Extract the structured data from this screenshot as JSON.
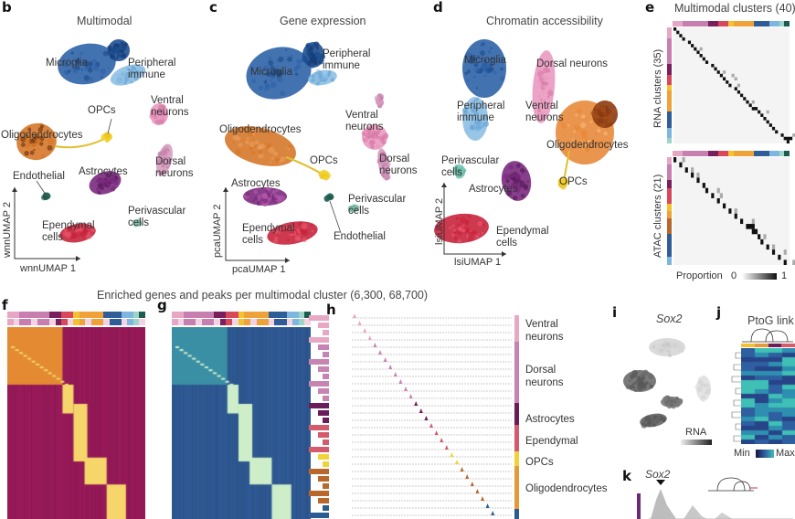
{
  "panels": {
    "b": {
      "letter": "b",
      "title": "Multimodal",
      "xlabel": "wnnUMAP 1",
      "ylabel": "wnnUMAP 2",
      "labels": [
        "Microglia",
        "Peripheral\nimmune",
        "OPCs",
        "Ventral\nneurons",
        "Oligodendrocytes",
        "Dorsal\nneurons",
        "Endothelial",
        "Astrocytes",
        "Perivascular\ncells",
        "Ependymal\ncells"
      ]
    },
    "c": {
      "letter": "c",
      "title": "Gene expression",
      "xlabel": "pcaUMAP 1",
      "ylabel": "pcaUMAP 2",
      "labels": [
        "Peripheral\nimmune",
        "Microglia",
        "Oligodendrocytes",
        "Ventral\nneurons",
        "OPCs",
        "Dorsal\nneurons",
        "Astrocytes",
        "Perivascular\ncells",
        "Ependymal\ncells",
        "Endothelial"
      ]
    },
    "d": {
      "letter": "d",
      "title": "Chromatin accessibility",
      "xlabel": "lsiUMAP 1",
      "ylabel": "lsiUMAP 2",
      "labels": [
        "Microglia",
        "Dorsal neurons",
        "Peripheral\nimmune",
        "Ventral\nneurons",
        "Oligodendrocytes",
        "Perivascular\ncells",
        "OPCs",
        "Astrocytes",
        "Ependymal\ncells"
      ]
    },
    "e": {
      "letter": "e",
      "title": "Multimodal clusters (40)",
      "rna_label": "RNA clusters (35)",
      "atac_label": "ATAC clusters (21)",
      "legend_label": "Proportion",
      "legend_min": "0",
      "legend_max": "1"
    },
    "fgh_title": "Enriched genes and peaks per multimodal cluster (6,300, 68,700)",
    "f": {
      "letter": "f"
    },
    "g": {
      "letter": "g"
    },
    "h": {
      "letter": "h",
      "groups": [
        "Ventral\nneurons",
        "Dorsal\nneurons",
        "Astrocytes",
        "Ependymal",
        "OPCs",
        "Oligodendrocytes"
      ]
    },
    "i": {
      "letter": "i",
      "title": "Sox2",
      "legend_label": "RNA"
    },
    "j": {
      "letter": "j",
      "title": "PtoG link",
      "legend_min": "Min",
      "legend_max": "Max"
    },
    "k": {
      "letter": "k",
      "gene": "Sox2"
    }
  },
  "colors": {
    "cluster_strip": [
      "#e7a6c4",
      "#e7a6c4",
      "#c77fb0",
      "#c77fb0",
      "#c77fb0",
      "#c77fb0",
      "#c77fb0",
      "#7a1f5e",
      "#7a1f5e",
      "#d9485a",
      "#d9485a",
      "#f1c232",
      "#f0a23a",
      "#f0a23a",
      "#f0a23a",
      "#f0a23a",
      "#2f5d97",
      "#2f5d97",
      "#2f5d97",
      "#7db7e0",
      "#7db7e0",
      "#9fd5c9",
      "#1d5c50"
    ],
    "h_groups": [
      "#e8a7c2",
      "#c783b1",
      "#6b1c5a",
      "#d45b6c",
      "#f1d23a",
      "#e59a3a",
      "#2c5a92"
    ]
  },
  "chart_data": [
    {
      "type": "heatmap",
      "panel": "e-top",
      "title": "Multimodal clusters (40)",
      "ylabel": "RNA clusters (35)",
      "rows": 35,
      "cols": 40,
      "pattern": "diagonal"
    },
    {
      "type": "heatmap",
      "panel": "e-bottom",
      "ylabel": "ATAC clusters (21)",
      "rows": 21,
      "cols": 40,
      "pattern": "diagonal",
      "legend": {
        "label": "Proportion",
        "range": [
          0,
          1
        ]
      }
    },
    {
      "type": "heatmap",
      "panel": "f",
      "pattern": "block-diagonal",
      "colormap": "inferno"
    },
    {
      "type": "heatmap",
      "panel": "g",
      "pattern": "block-diagonal",
      "colormap": "viridis"
    },
    {
      "type": "heatmap",
      "panel": "j",
      "title": "PtoG link",
      "legend": {
        "min": "Min",
        "max": "Max"
      }
    }
  ]
}
